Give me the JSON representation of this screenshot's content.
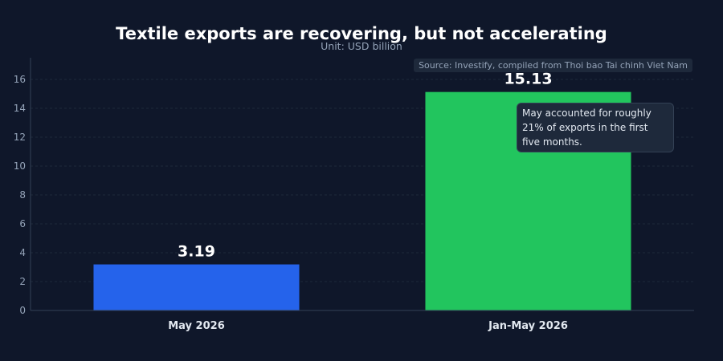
{
  "chart_data": {
    "type": "bar",
    "title": "Textile exports are recovering, but not accelerating",
    "subtitle": "Unit: USD billion",
    "source": "Source: Investify, compiled from Thoi bao Tai chinh Viet Nam",
    "annotation": "May accounted for roughly 21% of exports in the first five months.",
    "categories": [
      "May 2026",
      "Jan-May 2026"
    ],
    "values": [
      3.19,
      15.13
    ],
    "data_labels": [
      "3.19",
      "15.13"
    ],
    "bar_colors": [
      "#2563eb",
      "#22c55e"
    ],
    "yticks": [
      0,
      2,
      4,
      6,
      8,
      10,
      12,
      14,
      16
    ],
    "ylim": [
      0,
      17.5
    ],
    "grid": true,
    "xlabel": "",
    "ylabel": ""
  },
  "colors": {
    "background": "#0f172a",
    "grid": "#1e293b",
    "axis": "#334155",
    "text": "#ffffff",
    "muted": "#94a3b8"
  }
}
